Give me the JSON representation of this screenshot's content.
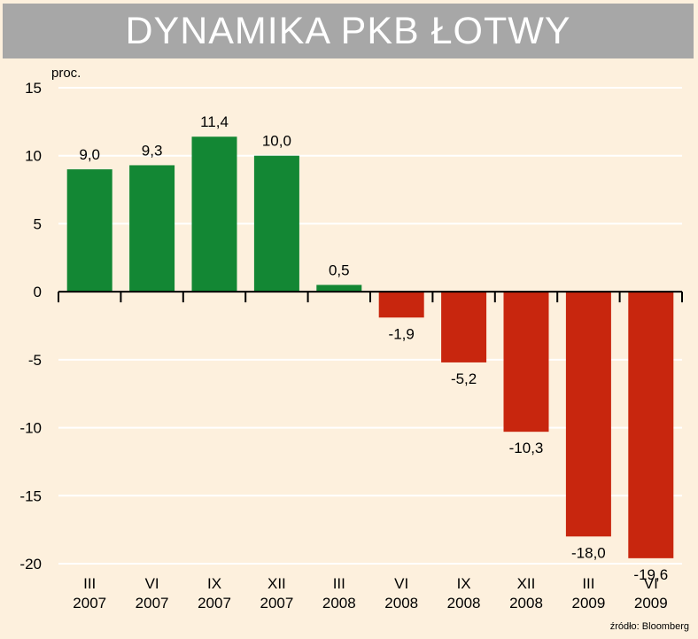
{
  "title": "DYNAMIKA PKB ŁOTWY",
  "unit_label": "proc.",
  "source": "źródło: Bloomberg",
  "colors": {
    "positive": "#138734",
    "negative": "#c8260e",
    "background": "#fdf0dd",
    "title_bar": "#a7a7a7"
  },
  "chart_data": {
    "type": "bar",
    "title": "DYNAMIKA PKB ŁOTWY",
    "ylabel": "proc.",
    "xlabel": "",
    "ylim": [
      -20,
      15
    ],
    "yticks": [
      15,
      10,
      5,
      0,
      -5,
      -10,
      -15,
      -20
    ],
    "grid": true,
    "categories": [
      [
        "III",
        "2007"
      ],
      [
        "VI",
        "2007"
      ],
      [
        "IX",
        "2007"
      ],
      [
        "XII",
        "2007"
      ],
      [
        "III",
        "2008"
      ],
      [
        "VI",
        "2008"
      ],
      [
        "IX",
        "2008"
      ],
      [
        "XII",
        "2008"
      ],
      [
        "III",
        "2009"
      ],
      [
        "VI",
        "2009"
      ]
    ],
    "values": [
      9.0,
      9.3,
      11.4,
      10.0,
      0.5,
      -1.9,
      -5.2,
      -10.3,
      -18.0,
      -19.6
    ],
    "value_labels": [
      "9,0",
      "9,3",
      "11,4",
      "10,0",
      "0,5",
      "-1,9",
      "-5,2",
      "-10,3",
      "-18,0",
      "-19,6"
    ]
  }
}
